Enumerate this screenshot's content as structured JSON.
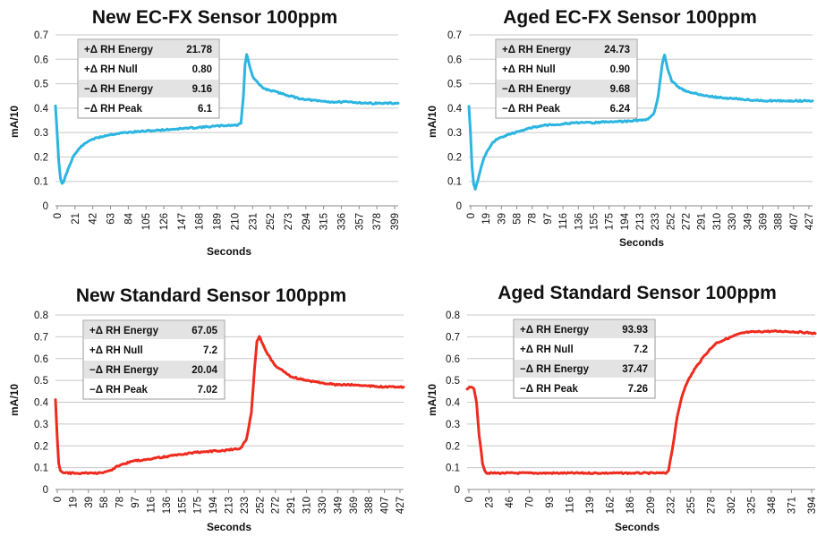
{
  "chart_data": [
    {
      "type": "line",
      "title": "New EC-FX Sensor 100ppm",
      "xlabel": "Seconds",
      "ylabel": "mA/10",
      "ylim": [
        0,
        0.7
      ],
      "yticks": [
        0,
        0.1,
        0.2,
        0.3,
        0.4,
        0.5,
        0.6,
        0.7
      ],
      "y_tick_labels": [
        "0",
        "0.1",
        "0.2",
        "0.3",
        "0.4",
        "0.5",
        "0.6",
        "0.7"
      ],
      "xlim": [
        0,
        414
      ],
      "xticks": [
        "0",
        "21",
        "42",
        "63",
        "84",
        "105",
        "126",
        "147",
        "168",
        "189",
        "210",
        "231",
        "252",
        "273",
        "294",
        "315",
        "336",
        "357",
        "378",
        "399"
      ],
      "grid": true,
      "series_color": "#2bb5e0",
      "series": [
        {
          "x": [
            0,
            2,
            4,
            6,
            8,
            10,
            14,
            21,
            30,
            42,
            63,
            84,
            105,
            126,
            147,
            168,
            189,
            210,
            220,
            224,
            227,
            229,
            231,
            234,
            238,
            245,
            252,
            273,
            294,
            315,
            336,
            357,
            378,
            399,
            414
          ],
          "y": [
            0.41,
            0.3,
            0.18,
            0.11,
            0.09,
            0.1,
            0.14,
            0.2,
            0.24,
            0.27,
            0.29,
            0.3,
            0.305,
            0.31,
            0.315,
            0.32,
            0.325,
            0.33,
            0.33,
            0.34,
            0.45,
            0.58,
            0.62,
            0.58,
            0.53,
            0.5,
            0.48,
            0.46,
            0.44,
            0.43,
            0.425,
            0.425,
            0.42,
            0.42,
            0.42
          ]
        }
      ],
      "annotation_table": [
        {
          "label": "+Δ RH Energy",
          "value": "21.78"
        },
        {
          "label": "+Δ RH Null",
          "value": "0.80"
        },
        {
          "label": "−Δ RH Energy",
          "value": "9.16"
        },
        {
          "label": "−Δ RH Peak",
          "value": "6.1"
        }
      ]
    },
    {
      "type": "line",
      "title": "Aged EC-FX Sensor 100ppm",
      "xlabel": "Seconds",
      "ylabel": "mA/10",
      "ylim": [
        0,
        0.7
      ],
      "yticks": [
        0,
        0.1,
        0.2,
        0.3,
        0.4,
        0.5,
        0.6,
        0.7
      ],
      "y_tick_labels": [
        "0",
        "0.1",
        "0.2",
        "0.3",
        "0.4",
        "0.5",
        "0.6",
        "0.7"
      ],
      "xlim": [
        0,
        432
      ],
      "xticks": [
        "0",
        "19",
        "39",
        "58",
        "78",
        "97",
        "116",
        "136",
        "155",
        "175",
        "194",
        "213",
        "233",
        "252",
        "272",
        "291",
        "310",
        "330",
        "349",
        "369",
        "388",
        "407",
        "427"
      ],
      "grid": true,
      "series_color": "#2bb5e0",
      "series": [
        {
          "x": [
            0,
            2,
            4,
            6,
            8,
            10,
            14,
            19,
            30,
            39,
            58,
            78,
            97,
            116,
            136,
            155,
            175,
            194,
            213,
            225,
            233,
            238,
            243,
            246,
            250,
            255,
            262,
            272,
            291,
            310,
            330,
            349,
            369,
            388,
            407,
            427,
            432
          ],
          "y": [
            0.41,
            0.3,
            0.16,
            0.09,
            0.07,
            0.09,
            0.14,
            0.2,
            0.26,
            0.28,
            0.3,
            0.32,
            0.33,
            0.335,
            0.34,
            0.34,
            0.345,
            0.345,
            0.35,
            0.355,
            0.38,
            0.45,
            0.58,
            0.62,
            0.56,
            0.51,
            0.49,
            0.47,
            0.455,
            0.445,
            0.44,
            0.435,
            0.43,
            0.43,
            0.43,
            0.43,
            0.43
          ]
        }
      ],
      "annotation_table": [
        {
          "label": "+Δ RH Energy",
          "value": "24.73"
        },
        {
          "label": "+Δ RH Null",
          "value": "0.90"
        },
        {
          "label": "−Δ RH Energy",
          "value": "9.68"
        },
        {
          "label": "−Δ RH Peak",
          "value": "6.24"
        }
      ]
    },
    {
      "type": "line",
      "title": "New Standard Sensor 100ppm",
      "xlabel": "Seconds",
      "ylabel": "mA/10",
      "ylim": [
        0,
        0.8
      ],
      "yticks": [
        0,
        0.1,
        0.2,
        0.3,
        0.4,
        0.5,
        0.6,
        0.7,
        0.8
      ],
      "y_tick_labels": [
        "0",
        "0.1",
        "0.2",
        "0.3",
        "0.4",
        "0.5",
        "0.6",
        "0.7",
        "0.8"
      ],
      "xlim": [
        0,
        432
      ],
      "xticks": [
        "0",
        "19",
        "39",
        "58",
        "78",
        "97",
        "116",
        "136",
        "155",
        "175",
        "194",
        "213",
        "233",
        "252",
        "272",
        "291",
        "310",
        "330",
        "349",
        "369",
        "388",
        "407",
        "427"
      ],
      "grid": true,
      "series_color": "#ee2b1f",
      "series": [
        {
          "x": [
            0,
            2,
            4,
            6,
            8,
            12,
            19,
            39,
            58,
            70,
            78,
            97,
            116,
            136,
            155,
            175,
            194,
            213,
            230,
            237,
            243,
            247,
            250,
            253,
            257,
            262,
            272,
            291,
            310,
            330,
            349,
            369,
            388,
            407,
            427,
            432
          ],
          "y": [
            0.41,
            0.25,
            0.12,
            0.085,
            0.08,
            0.075,
            0.075,
            0.075,
            0.075,
            0.09,
            0.11,
            0.13,
            0.14,
            0.15,
            0.16,
            0.17,
            0.175,
            0.18,
            0.19,
            0.23,
            0.35,
            0.55,
            0.68,
            0.7,
            0.67,
            0.63,
            0.57,
            0.52,
            0.5,
            0.49,
            0.48,
            0.48,
            0.475,
            0.47,
            0.47,
            0.47
          ]
        }
      ],
      "annotation_table": [
        {
          "label": "+Δ RH Energy",
          "value": "67.05"
        },
        {
          "label": "+Δ RH Null",
          "value": "7.2"
        },
        {
          "label": "−Δ RH Energy",
          "value": "20.04"
        },
        {
          "label": "−Δ RH Peak",
          "value": "7.02"
        }
      ]
    },
    {
      "type": "line",
      "title": "Aged Standard Sensor 100ppm",
      "xlabel": "Seconds",
      "ylabel": "mA/10",
      "ylim": [
        0,
        0.8
      ],
      "yticks": [
        0,
        0.1,
        0.2,
        0.3,
        0.4,
        0.5,
        0.6,
        0.7,
        0.8
      ],
      "y_tick_labels": [
        "0",
        "0.1",
        "0.2",
        "0.3",
        "0.4",
        "0.5",
        "0.6",
        "0.7",
        "0.8"
      ],
      "xlim": [
        0,
        406
      ],
      "xticks": [
        "0",
        "23",
        "46",
        "70",
        "93",
        "116",
        "139",
        "162",
        "186",
        "209",
        "232",
        "255",
        "278",
        "302",
        "325",
        "348",
        "371",
        "394"
      ],
      "grid": true,
      "series_color": "#ee2b1f",
      "series": [
        {
          "x": [
            0,
            4,
            8,
            11,
            14,
            18,
            21,
            23,
            26,
            46,
            70,
            93,
            116,
            139,
            162,
            186,
            209,
            232,
            235,
            240,
            245,
            250,
            255,
            265,
            278,
            290,
            302,
            315,
            325,
            348,
            371,
            394,
            406
          ],
          "y": [
            0.46,
            0.47,
            0.46,
            0.4,
            0.25,
            0.12,
            0.085,
            0.075,
            0.075,
            0.075,
            0.075,
            0.075,
            0.075,
            0.075,
            0.075,
            0.075,
            0.075,
            0.075,
            0.09,
            0.2,
            0.33,
            0.42,
            0.48,
            0.55,
            0.62,
            0.67,
            0.69,
            0.71,
            0.72,
            0.725,
            0.725,
            0.72,
            0.715
          ]
        }
      ],
      "annotation_table": [
        {
          "label": "+Δ RH Energy",
          "value": "93.93"
        },
        {
          "label": "+Δ RH Null",
          "value": "7.2"
        },
        {
          "label": "−Δ RH Energy",
          "value": "37.47"
        },
        {
          "label": "−Δ RH Peak",
          "value": "7.26"
        }
      ]
    }
  ]
}
